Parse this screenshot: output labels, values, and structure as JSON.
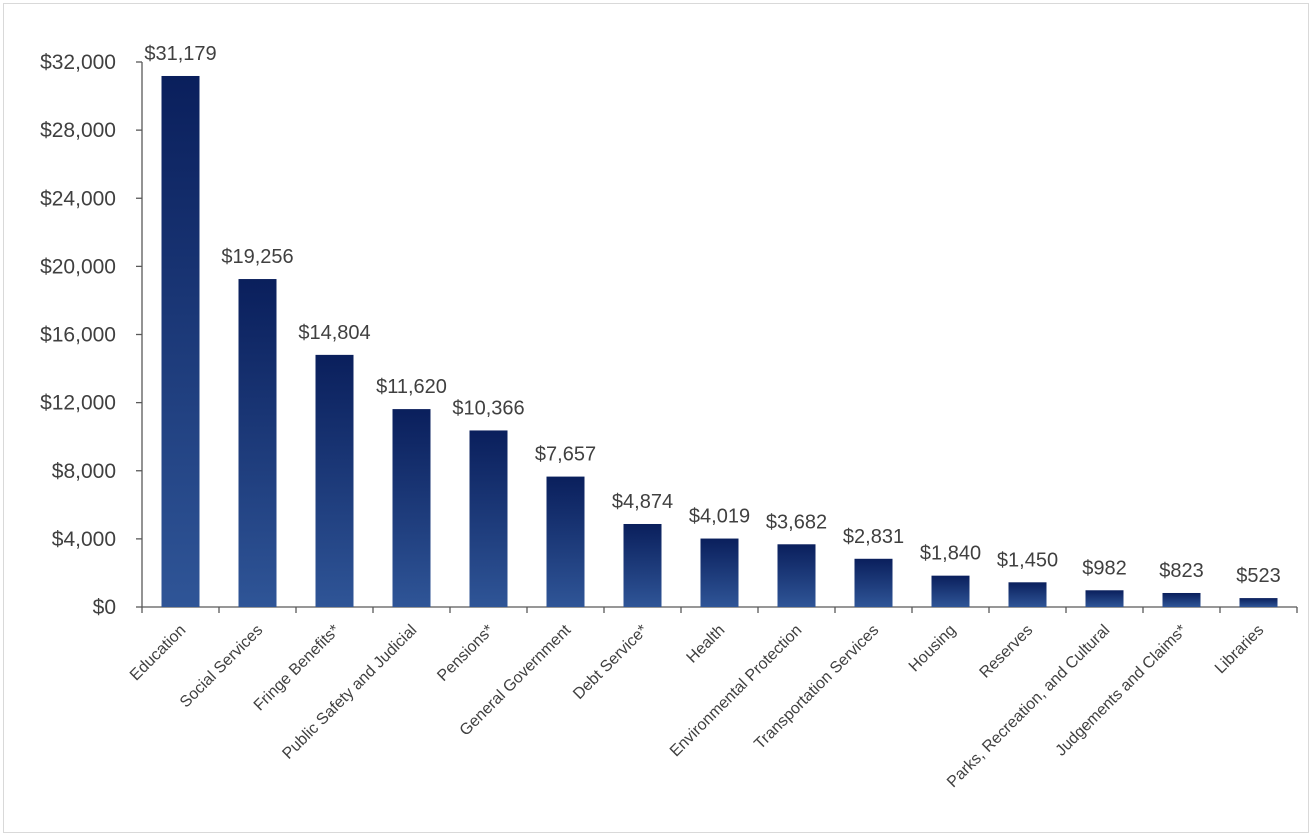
{
  "chart_data": {
    "type": "bar",
    "title": "",
    "xlabel": "",
    "ylabel": "",
    "categories": [
      "Education",
      "Social Services",
      "Fringe Benefits*",
      "Public Safety and Judicial",
      "Pensions*",
      "General Government",
      "Debt Service*",
      "Health",
      "Environmental Protection",
      "Transportation Services",
      "Housing",
      "Reserves",
      "Parks, Recreation, and Cultural",
      "Judgements and Claims*",
      "Libraries"
    ],
    "values": [
      31179,
      19256,
      14804,
      11620,
      10366,
      7657,
      4874,
      4019,
      3682,
      2831,
      1840,
      1450,
      982,
      823,
      523
    ],
    "data_labels": [
      "$31,179",
      "$19,256",
      "$14,804",
      "$11,620",
      "$10,366",
      "$7,657",
      "$4,874",
      "$4,019",
      "$3,682",
      "$2,831",
      "$1,840",
      "$1,450",
      "$982",
      "$823",
      "$523"
    ],
    "ylim": [
      0,
      32000
    ],
    "y_ticks": [
      0,
      4000,
      8000,
      12000,
      16000,
      20000,
      24000,
      28000,
      32000
    ],
    "y_tick_labels": [
      "$0",
      "$4,000",
      "$8,000",
      "$12,000",
      "$16,000",
      "$20,000",
      "$24,000",
      "$28,000",
      "$32,000"
    ],
    "grid": false,
    "legend": "none",
    "colors": {
      "bar_top": "#0a1f5c",
      "bar_bottom": "#2f5597",
      "axis": "#595959",
      "text": "#404040",
      "frame": "#d9d9d9"
    }
  }
}
